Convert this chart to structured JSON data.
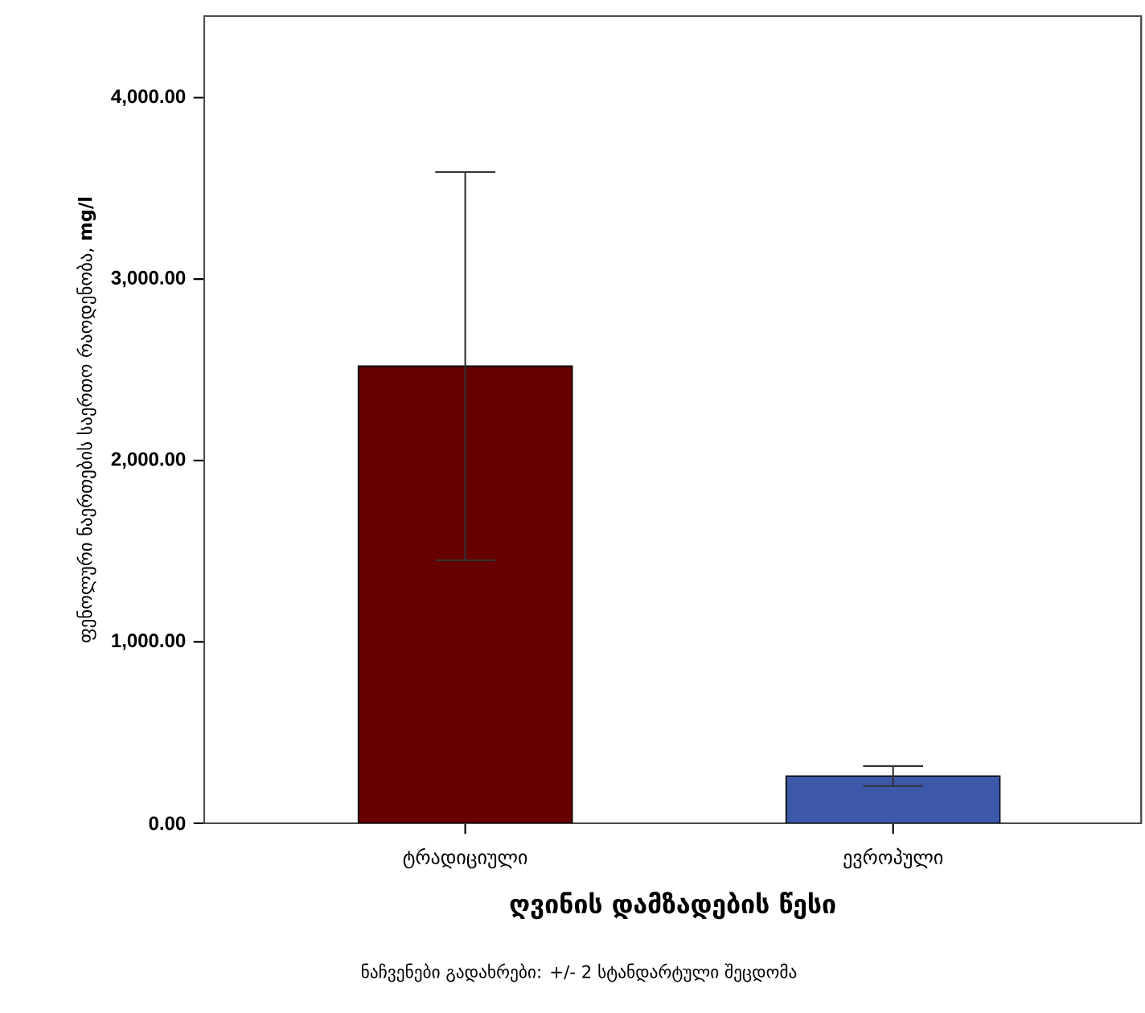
{
  "chart_data": {
    "type": "bar",
    "xlabel": "ღვინის დამზადების წესი",
    "ylabel": "ფენოლური ნაერთების საერთო რაოდენობა, **mg/l**",
    "annotations": [
      "ნაჩვენები გადახრები: +/- 2 სტანდარტული შეცდომა"
    ],
    "categories": [
      "ტრადიციული",
      "ევროპული"
    ],
    "values": [
      2520,
      260
    ],
    "errors": [
      1070,
      55
    ],
    "colors": [
      "#660000",
      "#3d58a8"
    ],
    "ylim": [
      0,
      4450
    ],
    "yticks": [
      {
        "value": 0,
        "label": "0.00"
      },
      {
        "value": 1000,
        "label": "1,000.00"
      },
      {
        "value": 2000,
        "label": "2,000.00"
      },
      {
        "value": 3000,
        "label": "3,000.00"
      },
      {
        "value": 4000,
        "label": "4,000.00"
      }
    ]
  }
}
